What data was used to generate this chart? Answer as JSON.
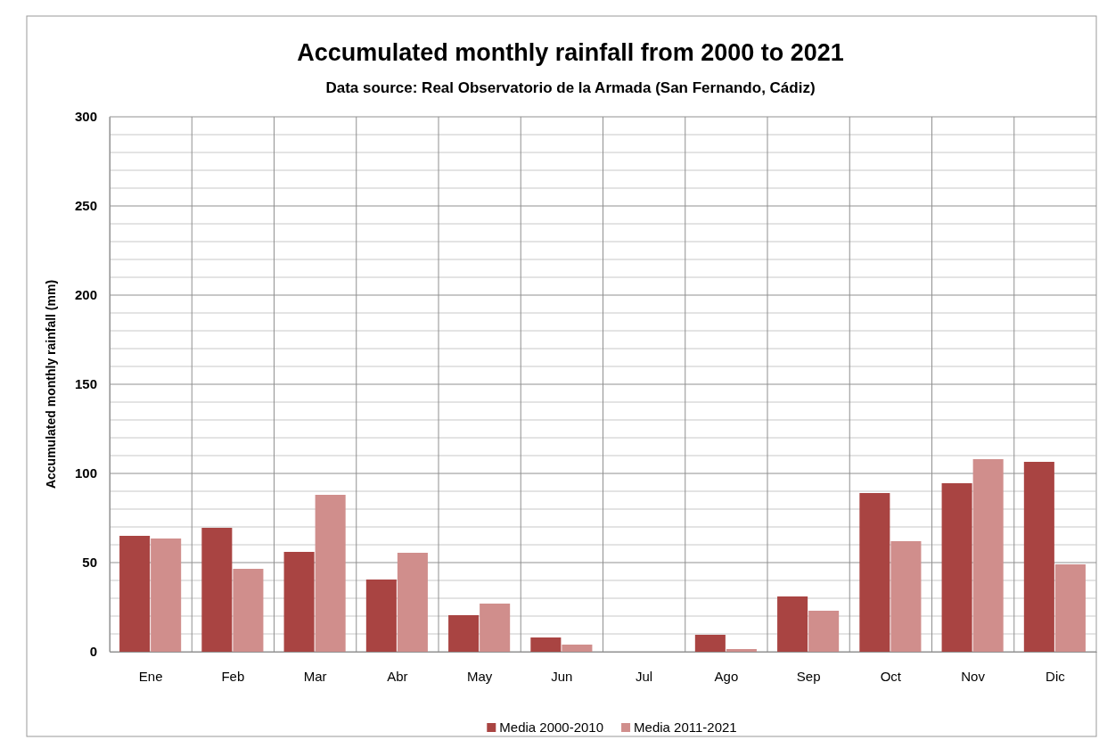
{
  "chart_data": {
    "type": "bar",
    "title": "Accumulated monthly rainfall from 2000 to 2021",
    "subtitle": "Data source: Real Observatorio de la Armada (San Fernando, Cádiz)",
    "ylabel": "Accumulated monthly rainfall  (mm)",
    "categories": [
      "Ene",
      "Feb",
      "Mar",
      "Abr",
      "May",
      "Jun",
      "Jul",
      "Ago",
      "Sep",
      "Oct",
      "Nov",
      "Dic"
    ],
    "series": [
      {
        "name": "Media 2000-2010",
        "color": "#a94442",
        "values": [
          65,
          69.5,
          56,
          40.5,
          20.5,
          8,
          0,
          9.5,
          31,
          89,
          94.5,
          106.5
        ]
      },
      {
        "name": "Media 2011-2021",
        "color": "#d08e8c",
        "values": [
          63.5,
          46.5,
          88,
          55.5,
          27,
          4,
          0,
          1.5,
          23,
          62,
          108,
          49
        ]
      }
    ],
    "ylim": [
      0,
      300
    ],
    "yticks": [
      0,
      50,
      100,
      150,
      200,
      250,
      300
    ],
    "grid": true,
    "legend": "bottom"
  }
}
